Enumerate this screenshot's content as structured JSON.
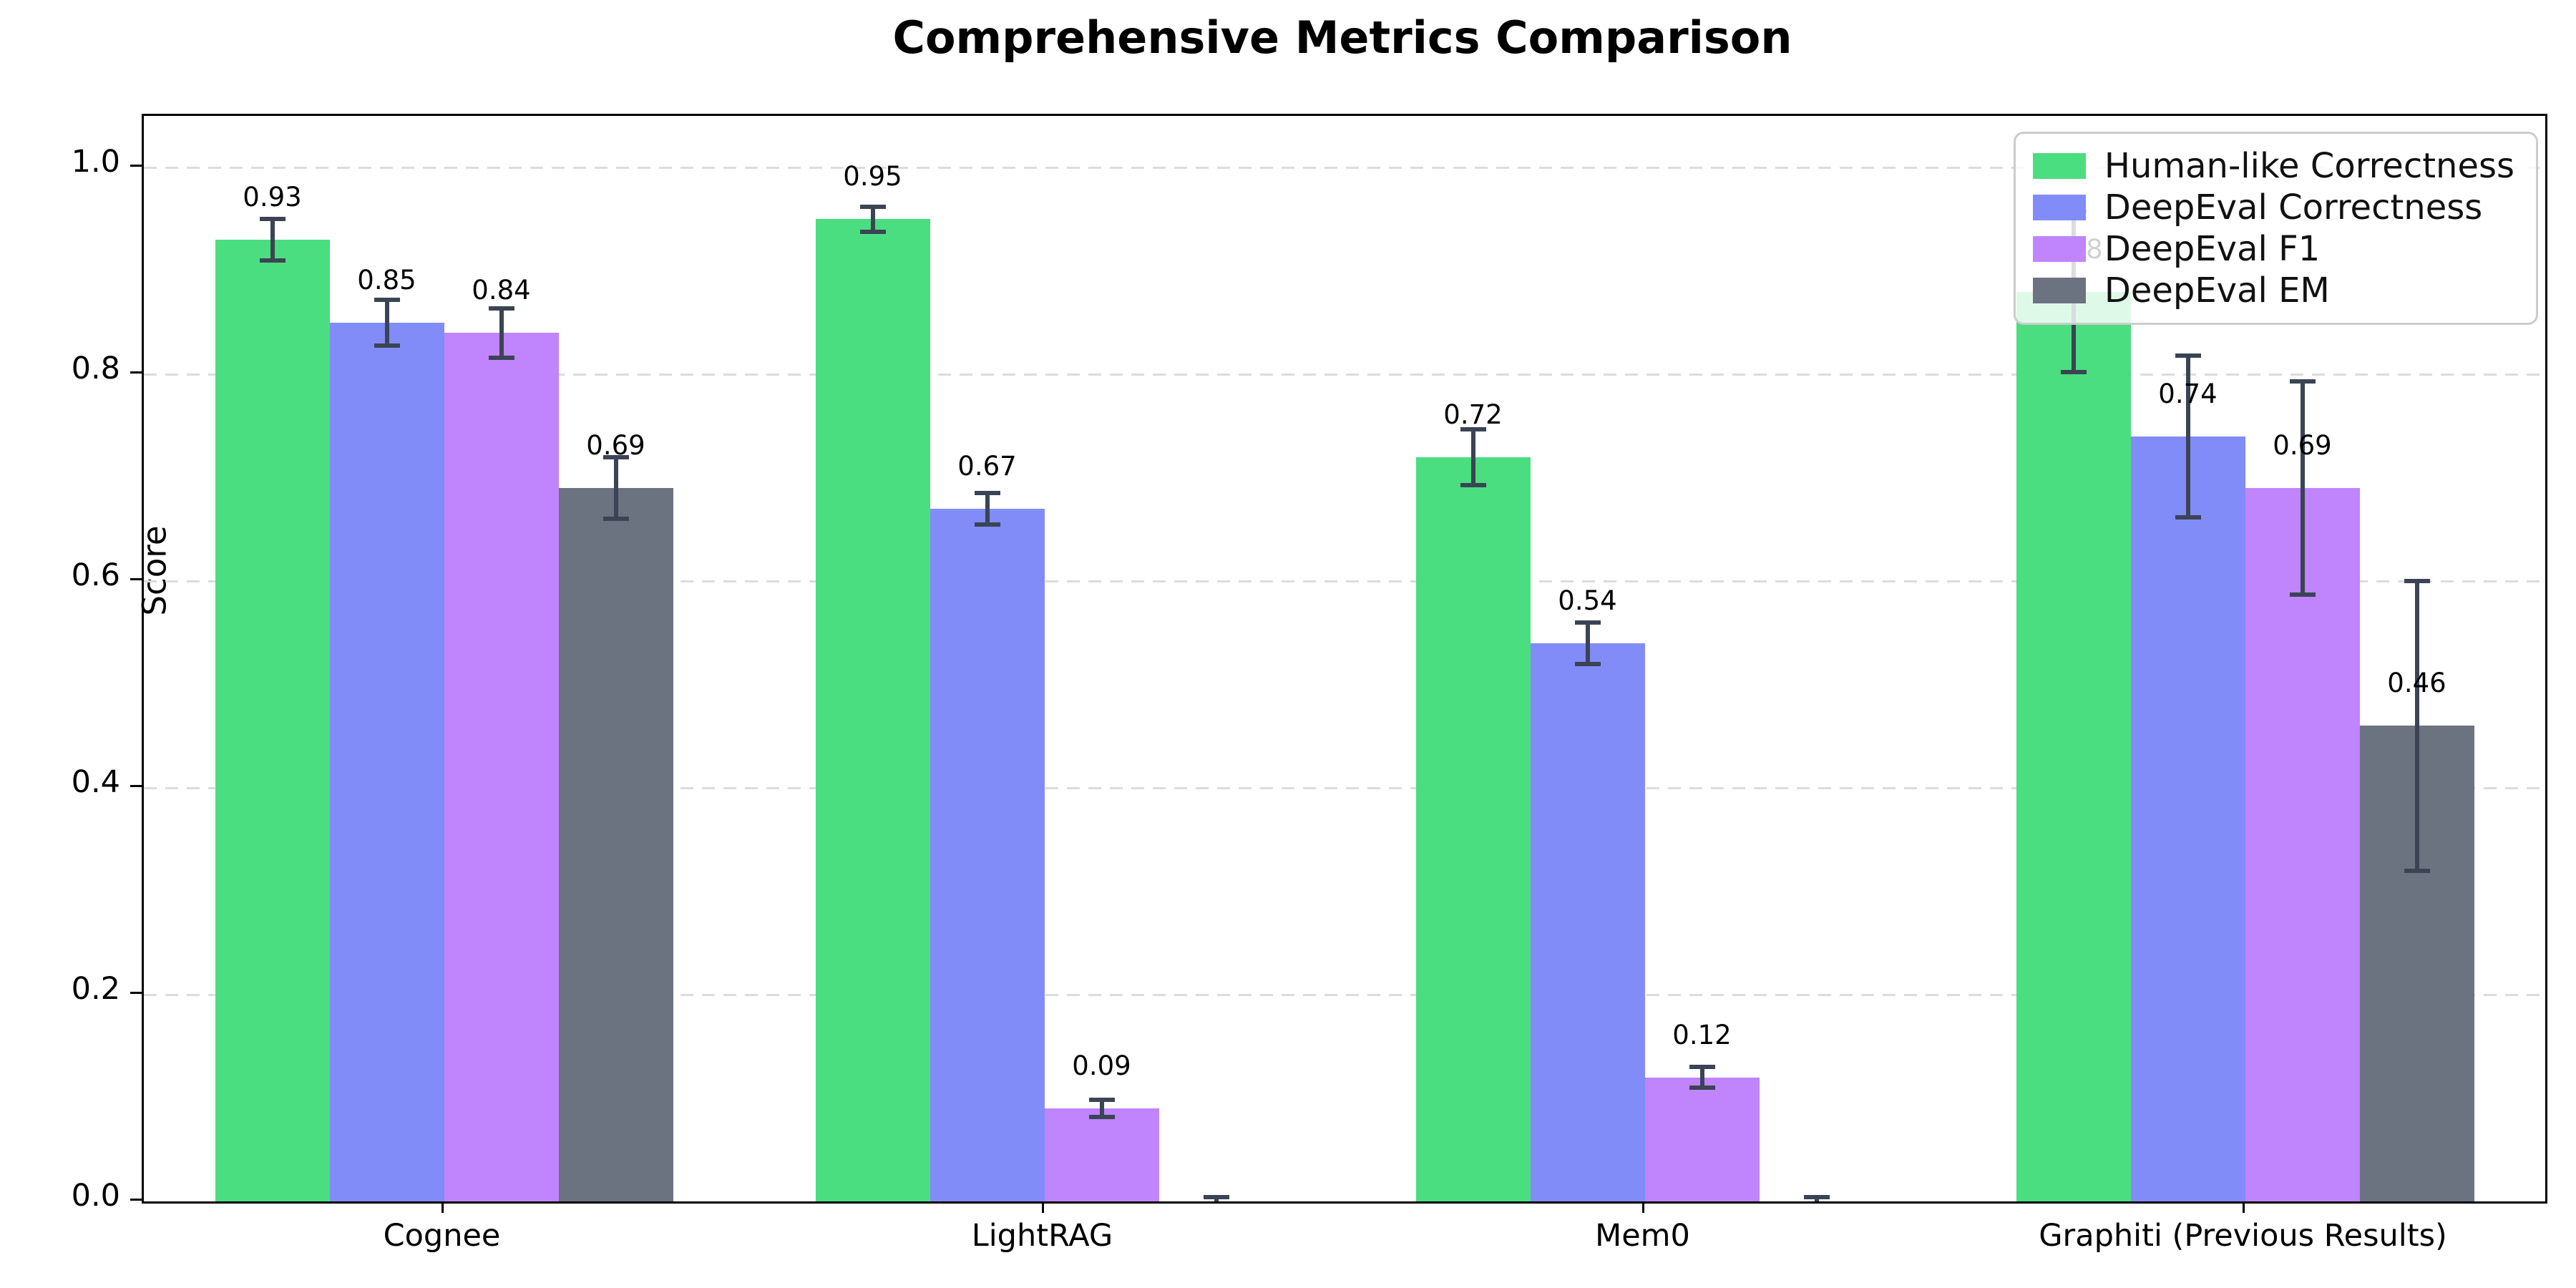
{
  "figure": {
    "title": "Comprehensive Metrics Comparison",
    "ylabel": "Score"
  },
  "chart_data": {
    "type": "bar",
    "title": "Comprehensive Metrics Comparison",
    "xlabel": "",
    "ylabel": "Score",
    "ylim": [
      0,
      1.05
    ],
    "grid": "horizontal-dashed",
    "legend_position": "upper right",
    "categories": [
      "Cognee",
      "LightRAG",
      "Mem0",
      "Graphiti (Previous Results)"
    ],
    "y_ticks": [
      "0.0",
      "0.2",
      "0.4",
      "0.6",
      "0.8",
      "1.0"
    ],
    "y_tick_values": [
      0.0,
      0.2,
      0.4,
      0.6,
      0.8,
      1.0
    ],
    "series": [
      {
        "name": "Human-like Correctness",
        "color": "#4ade80",
        "values": [
          0.93,
          0.95,
          0.72,
          0.88
        ],
        "errors": [
          0.02,
          0.012,
          0.027,
          0.078
        ],
        "labels": [
          "0.93",
          "0.95",
          "0.72",
          "0.88"
        ]
      },
      {
        "name": "DeepEval Correctness",
        "color": "#818cf8",
        "values": [
          0.85,
          0.67,
          0.54,
          0.74
        ],
        "errors": [
          0.022,
          0.015,
          0.02,
          0.078
        ],
        "labels": [
          "0.85",
          "0.67",
          "0.54",
          "0.74"
        ]
      },
      {
        "name": "DeepEval F1",
        "color": "#c084fc",
        "values": [
          0.84,
          0.09,
          0.12,
          0.69
        ],
        "errors": [
          0.024,
          0.008,
          0.01,
          0.103
        ],
        "labels": [
          "0.84",
          "0.09",
          "0.12",
          "0.69"
        ]
      },
      {
        "name": "DeepEval EM",
        "color": "#6b7280",
        "values": [
          0.69,
          0.0,
          0.0,
          0.46
        ],
        "errors": [
          0.03,
          0.004,
          0.004,
          0.14
        ],
        "labels": [
          "0.69",
          "",
          "",
          "0.46"
        ]
      }
    ],
    "error_bar_color": "#3a4454",
    "gridline_color": "#dcdcdc",
    "frame_color": "#000000"
  }
}
